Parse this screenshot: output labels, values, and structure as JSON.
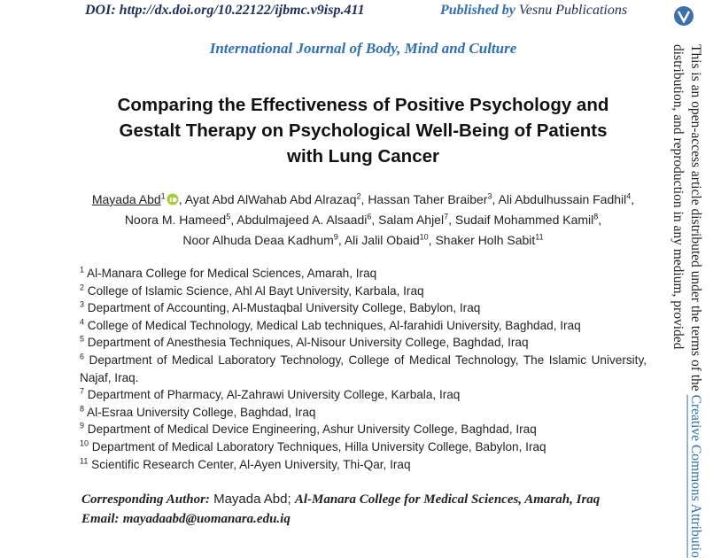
{
  "header": {
    "doi": "DOI: http://dx.doi.org/10.22122/ijbmc.v9isp.411",
    "published_by": "Published by",
    "publisher": "Vesnu Publications"
  },
  "journal": "International Journal of Body, Mind and Culture",
  "title_lines": [
    "Comparing the Effectiveness of Positive Psychology and",
    "Gestalt Therapy on Psychological Well-Being of Patients",
    "with Lung Cancer"
  ],
  "authors": {
    "separator": ",",
    "list": [
      {
        "name": "Mayada Abd",
        "affiliation": 1
      },
      {
        "name": "Ayat Abd AlWahab Abd Alrazaq",
        "affiliation": 2
      },
      {
        "name": "Hassan Taher Braiber",
        "affiliation": 3
      },
      {
        "name": "Ali Abdulhussain Fadhil",
        "affiliation": 4
      },
      {
        "name": "Noora M. Hameed",
        "affiliation": 5
      },
      {
        "name": "Abdulmajeed A. Alsaadi",
        "affiliation": 6
      },
      {
        "name": "Salam Ahjel",
        "affiliation": 7
      },
      {
        "name": "Sudaif Mohammed Kamil",
        "affiliation": 8
      },
      {
        "name": "Noor Alhuda Deaa Kadhum",
        "affiliation": 9
      },
      {
        "name": "Ali Jalil Obaid",
        "affiliation": 10
      },
      {
        "name": "Shaker Holh Sabit",
        "affiliation": 11
      }
    ]
  },
  "affiliations": [
    {
      "number": 1,
      "text": "Al-Manara College for Medical Sciences, Amarah, Iraq"
    },
    {
      "number": 2,
      "text": "College of Islamic Science, Ahl Al Bayt University, Karbala, Iraq"
    },
    {
      "number": 3,
      "text": "Department of Accounting, Al-Mustaqbal University College, Babylon, Iraq"
    },
    {
      "number": 4,
      "text": "College of Medical Technology, Medical Lab techniques, Al-farahidi University, Baghdad, Iraq"
    },
    {
      "number": 5,
      "text": "Department of Anesthesia Techniques, Al-Nisour University College, Baghdad, Iraq"
    },
    {
      "number": 6,
      "text": "Department of Medical Laboratory Technology, College of Medical Technology, The Islamic University, Najaf, Iraq."
    },
    {
      "number": 7,
      "text": "Department of Pharmacy, Al-Zahrawi University College, Karbala, Iraq"
    },
    {
      "number": 8,
      "text": "Al-Esraa University College, Baghdad, Iraq"
    },
    {
      "number": 9,
      "text": "Department of Medical Device Engineering, Ashur University College, Baghdad, Iraq"
    },
    {
      "number": 10,
      "text": "Department of Medical Laboratory Techniques, Hilla University College, Babylon, Iraq"
    },
    {
      "number": 11,
      "text": "Scientific Research Center, Al-Ayen University, Thi-Qar, Iraq"
    }
  ],
  "corresponding": {
    "label": "Corresponding Author:",
    "name": "Mayada Abd;",
    "affiliation": "Al-Manara College for Medical Sciences, Amarah, Iraq"
  },
  "email": {
    "label": "Email:",
    "value": "mayadaabd@uomanara.edu.iq"
  },
  "side": {
    "line1": "This is an open-access article distributed under the terms of the",
    "link": "Creative Commons Attributio",
    "line2": "distribution, and reproduction in any medium, provided"
  }
}
